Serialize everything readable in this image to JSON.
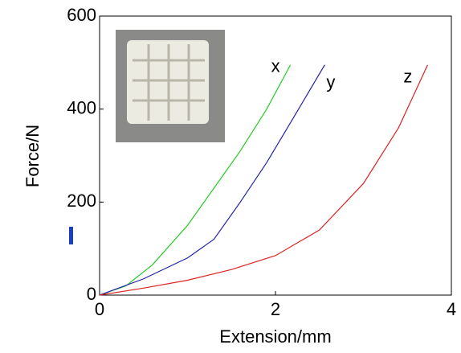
{
  "chart_data": {
    "type": "line",
    "x_label": "Extension/mm",
    "y_label": "Force/N",
    "xlim": [
      0,
      4
    ],
    "ylim": [
      0,
      600
    ],
    "xticks": [
      0,
      2,
      4
    ],
    "yticks": [
      0,
      200,
      400,
      600
    ],
    "series": [
      {
        "name": "x",
        "color": "#22cc22",
        "x": [
          0,
          0.3,
          0.6,
          1.0,
          1.3,
          1.6,
          1.9,
          2.17
        ],
        "values": [
          0,
          20,
          65,
          150,
          230,
          310,
          400,
          495
        ]
      },
      {
        "name": "y",
        "color": "#2222aa",
        "x": [
          0,
          0.5,
          1.0,
          1.3,
          1.6,
          1.9,
          2.2,
          2.56
        ],
        "values": [
          0,
          35,
          80,
          120,
          200,
          285,
          380,
          495
        ]
      },
      {
        "name": "z",
        "color": "#dd2222",
        "x": [
          0,
          0.5,
          1.0,
          1.5,
          2.0,
          2.5,
          3.0,
          3.4,
          3.73
        ],
        "values": [
          0,
          15,
          32,
          55,
          85,
          140,
          240,
          360,
          495
        ]
      }
    ]
  }
}
